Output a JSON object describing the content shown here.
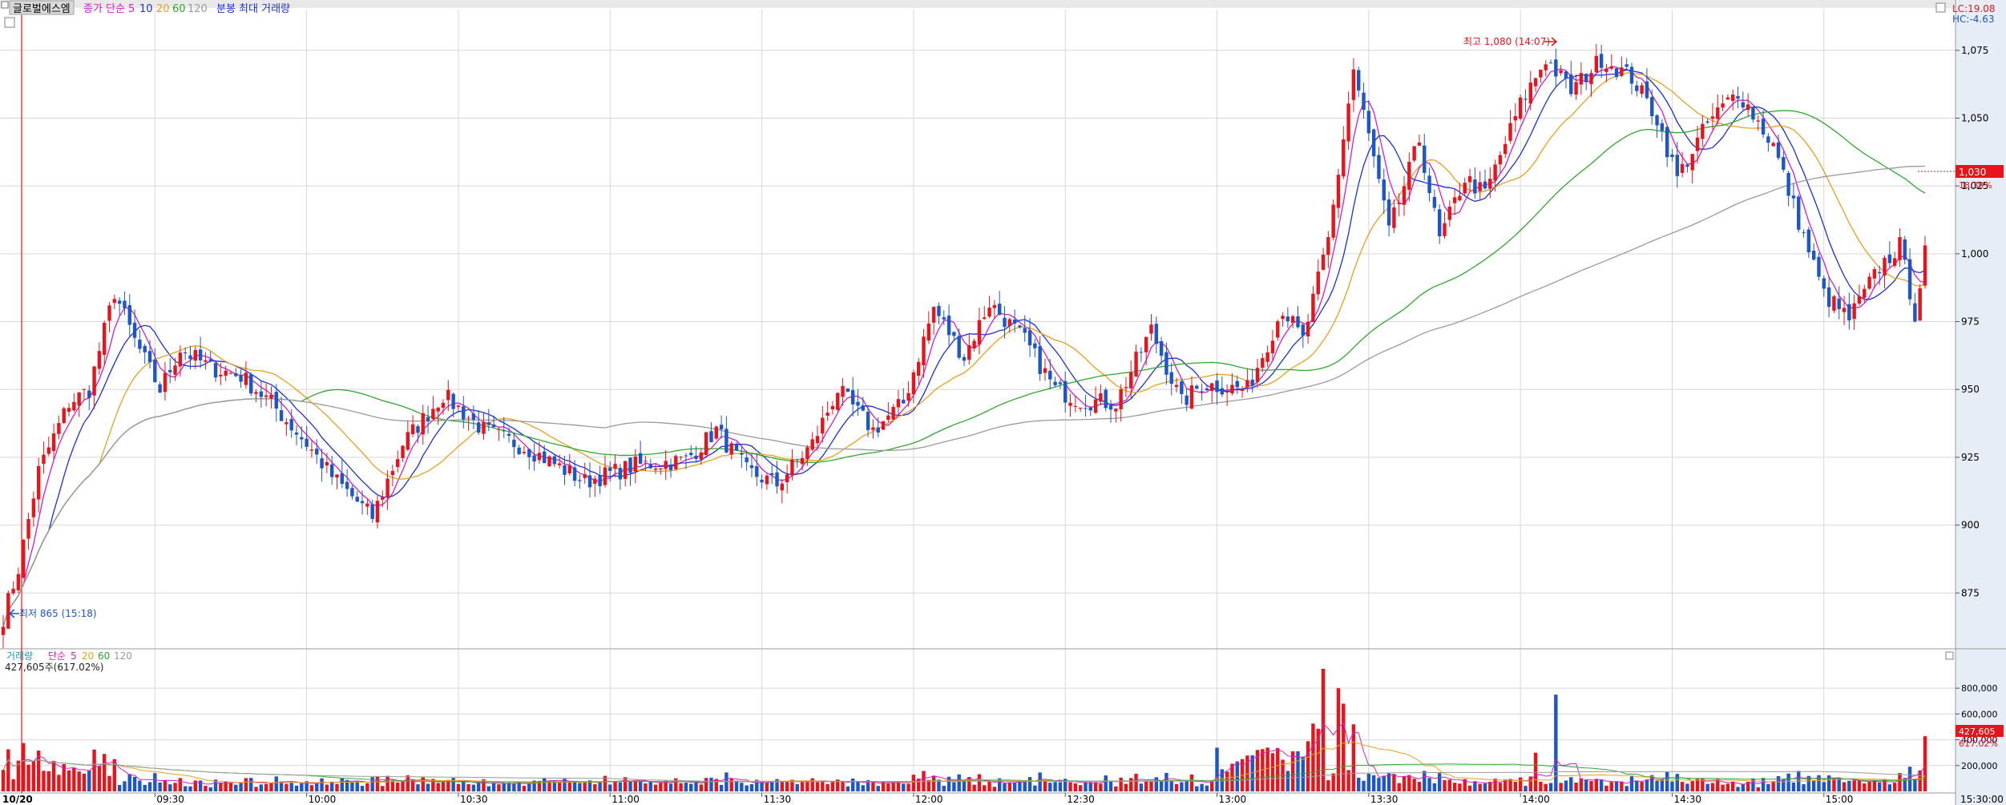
{
  "colors": {
    "up": "#e8141c",
    "down": "#1c56c8",
    "ma5": "#d21ec8",
    "ma10": "#1c2fd6",
    "ma20": "#e8a01c",
    "ma60": "#2ea82e",
    "ma120": "#9a9a9a",
    "axis_bg": "#e7edf6",
    "grid": "#d7d7d7",
    "title_bg": "#d9d9d9",
    "vol_avg5": "#d21ec8",
    "vol_avg20": "#e8a01c",
    "vol_avg60": "#2ea82e",
    "vol_avg120": "#9a9a9a"
  },
  "header": {
    "stock_name": "글로벌에스엠",
    "price_legend": {
      "label": "종가 단순",
      "periods": [
        "5",
        "10",
        "20",
        "60",
        "120"
      ]
    },
    "extra_legend": "분봉 최대 거래량"
  },
  "top_right": {
    "lc": "LC:19.08",
    "hc": "HC:-4.63"
  },
  "price_axis": {
    "ticks": [
      "1,075",
      "1,050",
      "1,025",
      "1,000",
      "975",
      "950",
      "925",
      "900",
      "875"
    ],
    "current_price": "1,030",
    "current_pct": "18.39%"
  },
  "annotations": {
    "high": "최고 1,080 (14:07)",
    "low": "최저 865 (15:18)"
  },
  "volume_panel": {
    "legend_label": "거래량",
    "legend_type": "단순",
    "periods": [
      "5",
      "20",
      "60",
      "120"
    ],
    "current_readout": "427,605주(617.02%)",
    "axis_ticks": [
      "800,000",
      "600,000",
      "400,000",
      "200,000"
    ],
    "current_volume": "427,605",
    "current_volume_pct": "617.02%"
  },
  "time_axis": {
    "date_label": "10/20",
    "ticks": [
      "09:30",
      "10:00",
      "10:30",
      "11:00",
      "11:30",
      "12:00",
      "12:30",
      "13:00",
      "13:30",
      "14:00",
      "14:30",
      "15:00"
    ],
    "end_label": "15:30:00"
  },
  "chart_data": {
    "type": "candlestick",
    "interval": "1-minute",
    "ylim": [
      855,
      1090
    ],
    "volume_ylim": [
      0,
      950000
    ],
    "anchors": [
      [
        "09:00",
        866
      ],
      [
        "09:03",
        884
      ],
      [
        "09:07",
        920
      ],
      [
        "09:13",
        945
      ],
      [
        "09:17",
        950
      ],
      [
        "09:22",
        986
      ],
      [
        "09:26",
        968
      ],
      [
        "09:31",
        950
      ],
      [
        "09:35",
        965
      ],
      [
        "09:41",
        958
      ],
      [
        "09:47",
        955
      ],
      [
        "09:53",
        945
      ],
      [
        "10:00",
        930
      ],
      [
        "10:05",
        918
      ],
      [
        "10:13",
        903
      ],
      [
        "10:19",
        930
      ],
      [
        "10:27",
        948
      ],
      [
        "10:35",
        935
      ],
      [
        "10:44",
        928
      ],
      [
        "10:55",
        916
      ],
      [
        "11:05",
        922
      ],
      [
        "11:15",
        924
      ],
      [
        "11:21",
        935
      ],
      [
        "11:27",
        920
      ],
      [
        "11:33",
        915
      ],
      [
        "11:40",
        930
      ],
      [
        "11:45",
        950
      ],
      [
        "11:52",
        935
      ],
      [
        "11:58",
        945
      ],
      [
        "12:04",
        980
      ],
      [
        "12:10",
        962
      ],
      [
        "12:15",
        982
      ],
      [
        "12:22",
        968
      ],
      [
        "12:28",
        950
      ],
      [
        "12:33",
        946
      ],
      [
        "12:40",
        945
      ],
      [
        "12:47",
        972
      ],
      [
        "12:53",
        945
      ],
      [
        "12:57",
        952
      ],
      [
        "13:06",
        950
      ],
      [
        "13:13",
        980
      ],
      [
        "13:17",
        968
      ],
      [
        "13:22",
        1005
      ],
      [
        "13:27",
        1068
      ],
      [
        "13:31",
        1035
      ],
      [
        "13:34",
        1008
      ],
      [
        "13:40",
        1042
      ],
      [
        "13:44",
        1005
      ],
      [
        "13:49",
        1028
      ],
      [
        "13:53",
        1022
      ],
      [
        "14:00",
        1055
      ],
      [
        "14:05",
        1072
      ],
      [
        "14:10",
        1060
      ],
      [
        "14:16",
        1072
      ],
      [
        "14:22",
        1065
      ],
      [
        "14:27",
        1050
      ],
      [
        "14:31",
        1028
      ],
      [
        "14:37",
        1048
      ],
      [
        "14:43",
        1060
      ],
      [
        "14:50",
        1040
      ],
      [
        "14:55",
        1012
      ],
      [
        "15:00",
        985
      ],
      [
        "15:05",
        976
      ],
      [
        "15:11",
        995
      ],
      [
        "15:15",
        1003
      ],
      [
        "15:18",
        978
      ],
      [
        "15:20",
        1000
      ]
    ],
    "volume_spikes": [
      [
        "09:22",
        250000
      ],
      [
        "13:21",
        950000
      ],
      [
        "13:24",
        800000
      ],
      [
        "13:25",
        680000
      ],
      [
        "13:27",
        520000
      ],
      [
        "14:07",
        750000
      ],
      [
        "14:03",
        300000
      ],
      [
        "15:20",
        427605
      ]
    ]
  }
}
